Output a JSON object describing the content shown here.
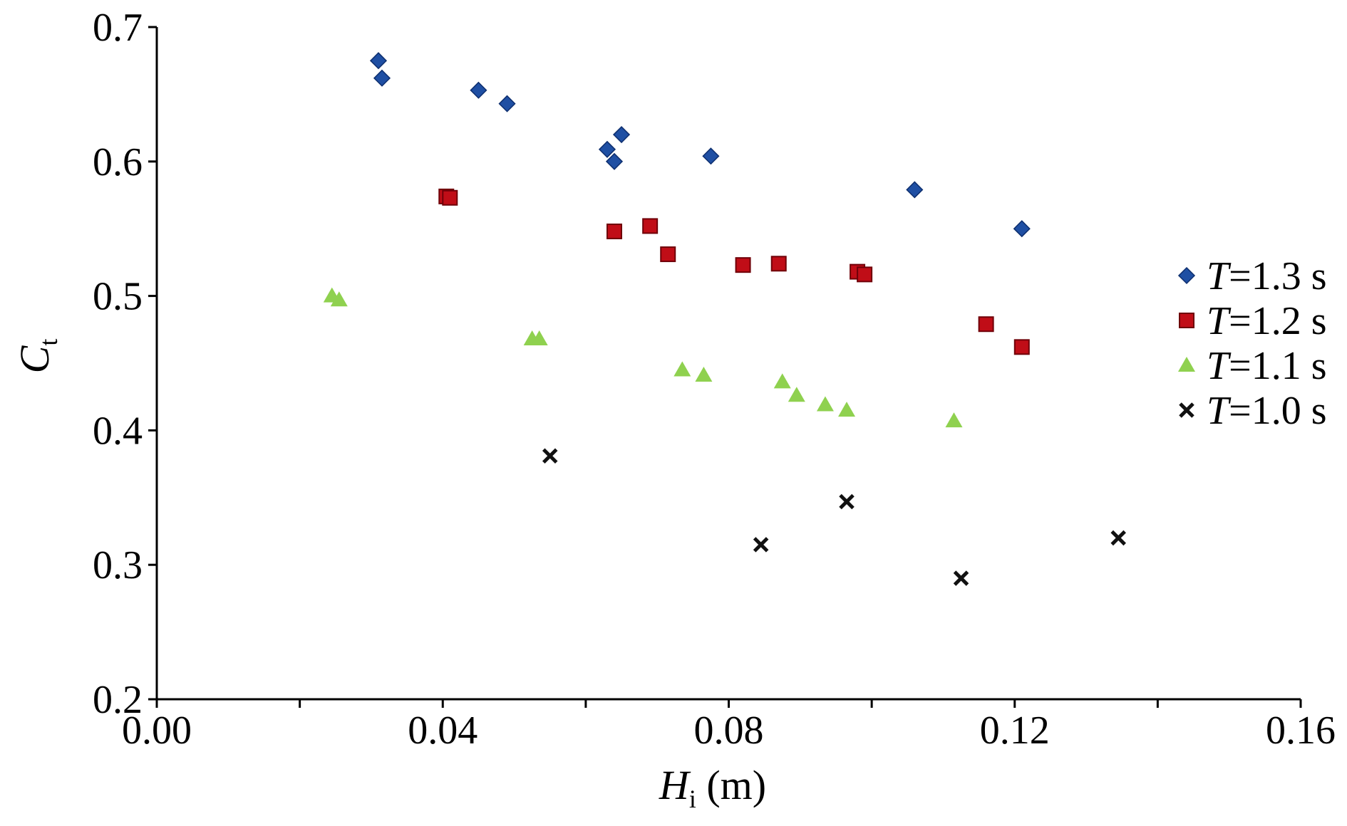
{
  "chart_data": {
    "type": "scatter",
    "xlabel": {
      "symbol": "H",
      "subscript": "i",
      "unit": " (m)"
    },
    "ylabel": {
      "symbol": "C",
      "subscript": "t"
    },
    "xlim": [
      0.0,
      0.16
    ],
    "ylim": [
      0.2,
      0.7
    ],
    "x_ticks": [
      0.0,
      0.02,
      0.04,
      0.06,
      0.08,
      0.1,
      0.12,
      0.14,
      0.16
    ],
    "x_tick_labels": [
      "0.00",
      "",
      "0.04",
      "",
      "0.08",
      "",
      "0.12",
      "",
      "0.16"
    ],
    "y_ticks": [
      0.2,
      0.3,
      0.4,
      0.5,
      0.6,
      0.7
    ],
    "y_tick_labels": [
      "0.2",
      "0.3",
      "0.4",
      "0.5",
      "0.6",
      "0.7"
    ],
    "grid": false,
    "legend_position": "right",
    "series": [
      {
        "name_var": "T",
        "name_rest": "=1.3 s",
        "marker": "diamond",
        "color": "#1f4fa3",
        "x": [
          0.031,
          0.0315,
          0.045,
          0.049,
          0.063,
          0.064,
          0.065,
          0.0775,
          0.106,
          0.121
        ],
        "y": [
          0.675,
          0.662,
          0.653,
          0.643,
          0.609,
          0.6,
          0.62,
          0.604,
          0.579,
          0.55
        ]
      },
      {
        "name_var": "T",
        "name_rest": "=1.2 s",
        "marker": "square",
        "color": "#c00d17",
        "x": [
          0.0405,
          0.041,
          0.064,
          0.069,
          0.0715,
          0.082,
          0.087,
          0.098,
          0.099,
          0.116,
          0.121
        ],
        "y": [
          0.574,
          0.573,
          0.548,
          0.552,
          0.531,
          0.523,
          0.524,
          0.518,
          0.516,
          0.479,
          0.462
        ]
      },
      {
        "name_var": "T",
        "name_rest": "=1.1 s",
        "marker": "triangle",
        "color": "#8fd14f",
        "x": [
          0.0245,
          0.0255,
          0.0525,
          0.0535,
          0.0735,
          0.0765,
          0.0875,
          0.0895,
          0.0935,
          0.0965,
          0.1115
        ],
        "y": [
          0.5,
          0.497,
          0.468,
          0.468,
          0.445,
          0.441,
          0.436,
          0.426,
          0.419,
          0.415,
          0.407
        ]
      },
      {
        "name_var": "T",
        "name_rest": "=1.0 s",
        "marker": "x",
        "color": "#111111",
        "x": [
          0.055,
          0.0845,
          0.0965,
          0.1125,
          0.1345
        ],
        "y": [
          0.381,
          0.315,
          0.347,
          0.29,
          0.32
        ]
      }
    ]
  }
}
